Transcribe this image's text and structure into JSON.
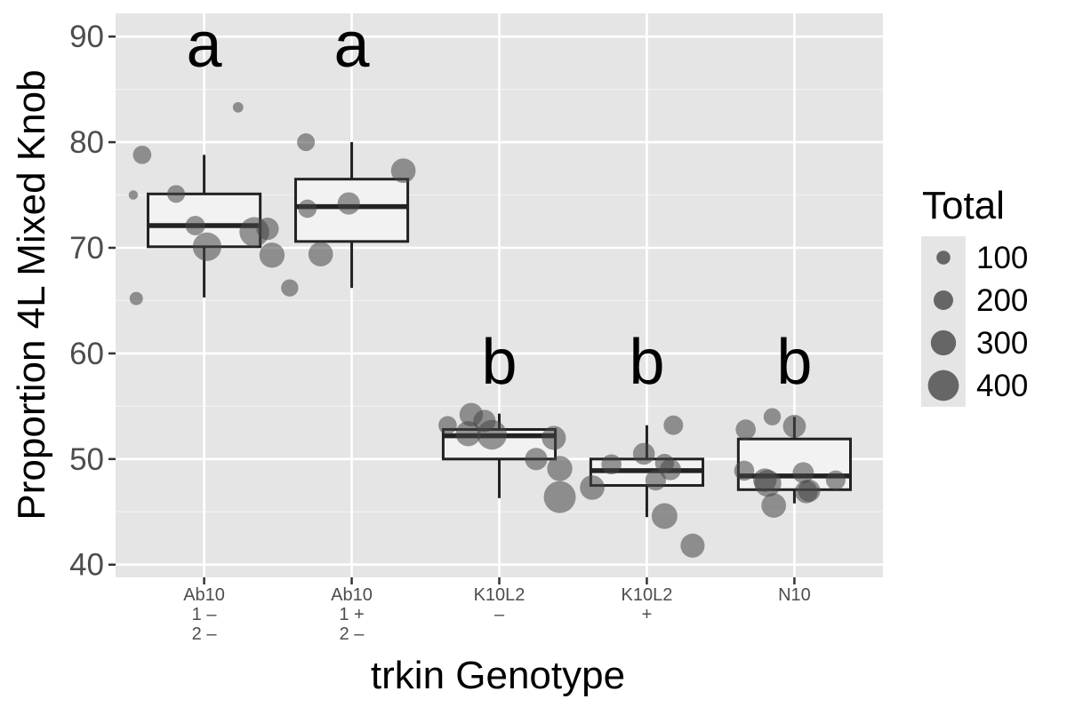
{
  "chart_data": {
    "type": "boxplot",
    "xlabel": "trkin Genotype",
    "ylabel": "Proportion 4L Mixed Knob",
    "ylim": [
      38.8,
      92.2
    ],
    "y_ticks": [
      40,
      50,
      60,
      70,
      80,
      90
    ],
    "grid": true,
    "legend": {
      "title": "Total",
      "position": "right",
      "sizes": [
        100,
        200,
        300,
        400
      ],
      "labels": [
        "100",
        "200",
        "300",
        "400"
      ]
    },
    "groups": [
      {
        "category": "Ab10 1 – 2 –",
        "tick_lines": [
          "Ab10",
          "1 –",
          "2 –"
        ],
        "letter": "a",
        "box": {
          "q1": 70.1,
          "median": 72.1,
          "q3": 75.1,
          "whisker_low": 65.3,
          "whisker_high": 78.8
        },
        "points": [
          {
            "dx": -0.48,
            "y": 75.0,
            "total": 20
          },
          {
            "dx": -0.46,
            "y": 65.2,
            "total": 90
          },
          {
            "dx": -0.42,
            "y": 78.8,
            "total": 180
          },
          {
            "dx": -0.19,
            "y": 75.1,
            "total": 170
          },
          {
            "dx": -0.06,
            "y": 72.1,
            "total": 200
          },
          {
            "dx": 0.02,
            "y": 70.1,
            "total": 360
          },
          {
            "dx": 0.23,
            "y": 83.3,
            "total": 40
          },
          {
            "dx": 0.34,
            "y": 71.5,
            "total": 380
          },
          {
            "dx": 0.43,
            "y": 71.8,
            "total": 250
          },
          {
            "dx": 0.46,
            "y": 69.3,
            "total": 300
          }
        ]
      },
      {
        "category": "Ab10 1 + 2 –",
        "tick_lines": [
          "Ab10",
          "1 +",
          "2 –"
        ],
        "letter": "a",
        "box": {
          "q1": 70.6,
          "median": 73.9,
          "q3": 76.5,
          "whisker_low": 66.2,
          "whisker_high": 80.0
        },
        "points": [
          {
            "dx": -0.42,
            "y": 66.2,
            "total": 160
          },
          {
            "dx": -0.31,
            "y": 80.0,
            "total": 170
          },
          {
            "dx": -0.3,
            "y": 73.7,
            "total": 180
          },
          {
            "dx": -0.21,
            "y": 69.4,
            "total": 290
          },
          {
            "dx": -0.02,
            "y": 74.2,
            "total": 250
          },
          {
            "dx": 0.35,
            "y": 77.3,
            "total": 290
          }
        ]
      },
      {
        "category": "K10L2 –",
        "tick_lines": [
          "K10L2",
          "–"
        ],
        "letter": "b",
        "box": {
          "q1": 50.0,
          "median": 52.2,
          "q3": 52.8,
          "whisker_low": 46.3,
          "whisker_high": 54.3
        },
        "points": [
          {
            "dx": -0.35,
            "y": 53.2,
            "total": 180
          },
          {
            "dx": -0.19,
            "y": 54.2,
            "total": 270
          },
          {
            "dx": -0.21,
            "y": 52.4,
            "total": 300
          },
          {
            "dx": -0.1,
            "y": 53.6,
            "total": 250
          },
          {
            "dx": -0.05,
            "y": 52.3,
            "total": 380
          },
          {
            "dx": 0.37,
            "y": 52.0,
            "total": 280
          },
          {
            "dx": 0.25,
            "y": 50.0,
            "total": 250
          },
          {
            "dx": 0.41,
            "y": 49.1,
            "total": 300
          },
          {
            "dx": 0.41,
            "y": 46.4,
            "total": 420
          }
        ]
      },
      {
        "category": "K10L2 +",
        "tick_lines": [
          "K10L2",
          "+"
        ],
        "letter": "b",
        "box": {
          "q1": 47.5,
          "median": 48.9,
          "q3": 50.0,
          "whisker_low": 44.5,
          "whisker_high": 53.2
        },
        "points": [
          {
            "dx": -0.37,
            "y": 47.3,
            "total": 290
          },
          {
            "dx": -0.24,
            "y": 49.5,
            "total": 210
          },
          {
            "dx": -0.02,
            "y": 50.5,
            "total": 240
          },
          {
            "dx": 0.06,
            "y": 48.0,
            "total": 220
          },
          {
            "dx": 0.12,
            "y": 49.6,
            "total": 190
          },
          {
            "dx": 0.16,
            "y": 49.0,
            "total": 230
          },
          {
            "dx": 0.12,
            "y": 44.6,
            "total": 310
          },
          {
            "dx": 0.18,
            "y": 53.2,
            "total": 200
          },
          {
            "dx": 0.31,
            "y": 41.8,
            "total": 280
          }
        ]
      },
      {
        "category": "N10",
        "tick_lines": [
          "N10"
        ],
        "letter": "b",
        "box": {
          "q1": 47.1,
          "median": 48.4,
          "q3": 51.9,
          "whisker_low": 45.8,
          "whisker_high": 54.0
        },
        "points": [
          {
            "dx": -0.33,
            "y": 52.8,
            "total": 210
          },
          {
            "dx": -0.34,
            "y": 48.9,
            "total": 210
          },
          {
            "dx": -0.15,
            "y": 54.0,
            "total": 160
          },
          {
            "dx": -0.2,
            "y": 48.0,
            "total": 270
          },
          {
            "dx": -0.18,
            "y": 47.7,
            "total": 330
          },
          {
            "dx": -0.14,
            "y": 45.6,
            "total": 290
          },
          {
            "dx": 0.0,
            "y": 53.1,
            "total": 260
          },
          {
            "dx": 0.06,
            "y": 48.7,
            "total": 230
          },
          {
            "dx": 0.08,
            "y": 46.9,
            "total": 260
          },
          {
            "dx": 0.1,
            "y": 47.0,
            "total": 250
          },
          {
            "dx": 0.28,
            "y": 48.0,
            "total": 200
          }
        ]
      }
    ]
  }
}
